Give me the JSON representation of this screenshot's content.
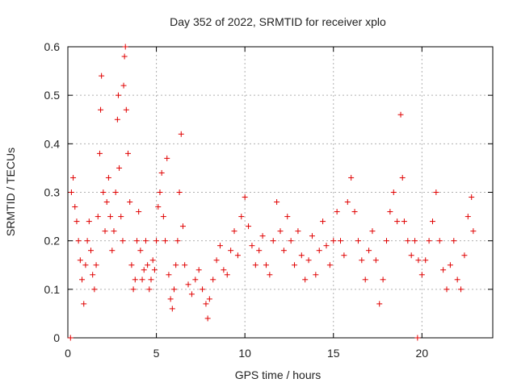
{
  "chart_data": {
    "type": "scatter",
    "title": "Day 352 of 2022, SRMTID for receiver xplo",
    "xlabel": "GPS time / hours",
    "ylabel": "SRMTID / TECUs",
    "xlim": [
      0,
      24
    ],
    "ylim": [
      0,
      0.6
    ],
    "x_ticks": [
      0,
      5,
      10,
      15,
      20
    ],
    "y_ticks": [
      0,
      0.1,
      0.2,
      0.3,
      0.4,
      0.5,
      0.6
    ],
    "x_tick_labels": [
      "0",
      "5",
      "10",
      "15",
      "20"
    ],
    "y_tick_labels": [
      "0",
      "0.1",
      "0.2",
      "0.3",
      "0.4",
      "0.5",
      "0.6"
    ],
    "grid": true,
    "marker": "+",
    "series": [
      {
        "name": "SRMTID",
        "color": "#e00000",
        "points": [
          [
            0.15,
            0.0
          ],
          [
            0.2,
            0.3
          ],
          [
            0.3,
            0.33
          ],
          [
            0.4,
            0.27
          ],
          [
            0.5,
            0.24
          ],
          [
            0.6,
            0.2
          ],
          [
            0.7,
            0.16
          ],
          [
            0.8,
            0.12
          ],
          [
            0.9,
            0.07
          ],
          [
            1.0,
            0.15
          ],
          [
            1.1,
            0.2
          ],
          [
            1.2,
            0.24
          ],
          [
            1.3,
            0.18
          ],
          [
            1.4,
            0.13
          ],
          [
            1.5,
            0.1
          ],
          [
            1.6,
            0.15
          ],
          [
            1.7,
            0.25
          ],
          [
            1.8,
            0.38
          ],
          [
            1.85,
            0.47
          ],
          [
            1.9,
            0.54
          ],
          [
            2.0,
            0.3
          ],
          [
            2.1,
            0.22
          ],
          [
            2.2,
            0.28
          ],
          [
            2.3,
            0.33
          ],
          [
            2.4,
            0.25
          ],
          [
            2.5,
            0.18
          ],
          [
            2.6,
            0.22
          ],
          [
            2.7,
            0.3
          ],
          [
            2.8,
            0.45
          ],
          [
            2.85,
            0.5
          ],
          [
            2.9,
            0.35
          ],
          [
            3.0,
            0.25
          ],
          [
            3.1,
            0.2
          ],
          [
            3.15,
            0.52
          ],
          [
            3.2,
            0.58
          ],
          [
            3.25,
            0.6
          ],
          [
            3.3,
            0.47
          ],
          [
            3.4,
            0.38
          ],
          [
            3.5,
            0.28
          ],
          [
            3.6,
            0.15
          ],
          [
            3.7,
            0.1
          ],
          [
            3.8,
            0.12
          ],
          [
            3.9,
            0.2
          ],
          [
            4.0,
            0.26
          ],
          [
            4.1,
            0.18
          ],
          [
            4.2,
            0.12
          ],
          [
            4.3,
            0.14
          ],
          [
            4.4,
            0.2
          ],
          [
            4.5,
            0.15
          ],
          [
            4.6,
            0.1
          ],
          [
            4.7,
            0.12
          ],
          [
            4.8,
            0.16
          ],
          [
            4.9,
            0.14
          ],
          [
            5.0,
            0.2
          ],
          [
            5.1,
            0.27
          ],
          [
            5.2,
            0.3
          ],
          [
            5.3,
            0.34
          ],
          [
            5.4,
            0.25
          ],
          [
            5.5,
            0.2
          ],
          [
            5.6,
            0.37
          ],
          [
            5.7,
            0.13
          ],
          [
            5.8,
            0.08
          ],
          [
            5.9,
            0.06
          ],
          [
            6.0,
            0.1
          ],
          [
            6.1,
            0.15
          ],
          [
            6.2,
            0.2
          ],
          [
            6.3,
            0.3
          ],
          [
            6.4,
            0.42
          ],
          [
            6.5,
            0.23
          ],
          [
            6.6,
            0.15
          ],
          [
            6.8,
            0.11
          ],
          [
            7.0,
            0.09
          ],
          [
            7.2,
            0.12
          ],
          [
            7.4,
            0.14
          ],
          [
            7.6,
            0.1
          ],
          [
            7.8,
            0.07
          ],
          [
            7.9,
            0.04
          ],
          [
            8.0,
            0.08
          ],
          [
            8.2,
            0.12
          ],
          [
            8.4,
            0.16
          ],
          [
            8.6,
            0.19
          ],
          [
            8.8,
            0.14
          ],
          [
            9.0,
            0.13
          ],
          [
            9.2,
            0.18
          ],
          [
            9.4,
            0.22
          ],
          [
            9.6,
            0.17
          ],
          [
            9.8,
            0.25
          ],
          [
            10.0,
            0.29
          ],
          [
            10.2,
            0.23
          ],
          [
            10.4,
            0.19
          ],
          [
            10.6,
            0.15
          ],
          [
            10.8,
            0.18
          ],
          [
            11.0,
            0.21
          ],
          [
            11.2,
            0.15
          ],
          [
            11.4,
            0.13
          ],
          [
            11.6,
            0.2
          ],
          [
            11.8,
            0.28
          ],
          [
            12.0,
            0.22
          ],
          [
            12.2,
            0.18
          ],
          [
            12.4,
            0.25
          ],
          [
            12.6,
            0.2
          ],
          [
            12.8,
            0.15
          ],
          [
            13.0,
            0.22
          ],
          [
            13.2,
            0.17
          ],
          [
            13.4,
            0.12
          ],
          [
            13.6,
            0.16
          ],
          [
            13.8,
            0.21
          ],
          [
            14.0,
            0.13
          ],
          [
            14.2,
            0.18
          ],
          [
            14.4,
            0.24
          ],
          [
            14.6,
            0.19
          ],
          [
            14.8,
            0.15
          ],
          [
            15.0,
            0.2
          ],
          [
            15.2,
            0.26
          ],
          [
            15.4,
            0.2
          ],
          [
            15.6,
            0.17
          ],
          [
            15.8,
            0.28
          ],
          [
            16.0,
            0.33
          ],
          [
            16.2,
            0.26
          ],
          [
            16.4,
            0.2
          ],
          [
            16.6,
            0.16
          ],
          [
            16.8,
            0.12
          ],
          [
            17.0,
            0.18
          ],
          [
            17.2,
            0.22
          ],
          [
            17.4,
            0.16
          ],
          [
            17.6,
            0.07
          ],
          [
            17.8,
            0.12
          ],
          [
            18.0,
            0.2
          ],
          [
            18.2,
            0.26
          ],
          [
            18.4,
            0.3
          ],
          [
            18.6,
            0.24
          ],
          [
            18.8,
            0.46
          ],
          [
            18.9,
            0.33
          ],
          [
            19.0,
            0.24
          ],
          [
            19.2,
            0.2
          ],
          [
            19.4,
            0.17
          ],
          [
            19.6,
            0.2
          ],
          [
            19.75,
            0.0
          ],
          [
            19.8,
            0.16
          ],
          [
            20.0,
            0.13
          ],
          [
            20.2,
            0.16
          ],
          [
            20.4,
            0.2
          ],
          [
            20.6,
            0.24
          ],
          [
            20.8,
            0.3
          ],
          [
            21.0,
            0.2
          ],
          [
            21.2,
            0.14
          ],
          [
            21.4,
            0.1
          ],
          [
            21.6,
            0.15
          ],
          [
            21.8,
            0.2
          ],
          [
            22.0,
            0.12
          ],
          [
            22.2,
            0.1
          ],
          [
            22.4,
            0.17
          ],
          [
            22.6,
            0.25
          ],
          [
            22.8,
            0.29
          ],
          [
            22.9,
            0.22
          ]
        ]
      }
    ]
  }
}
